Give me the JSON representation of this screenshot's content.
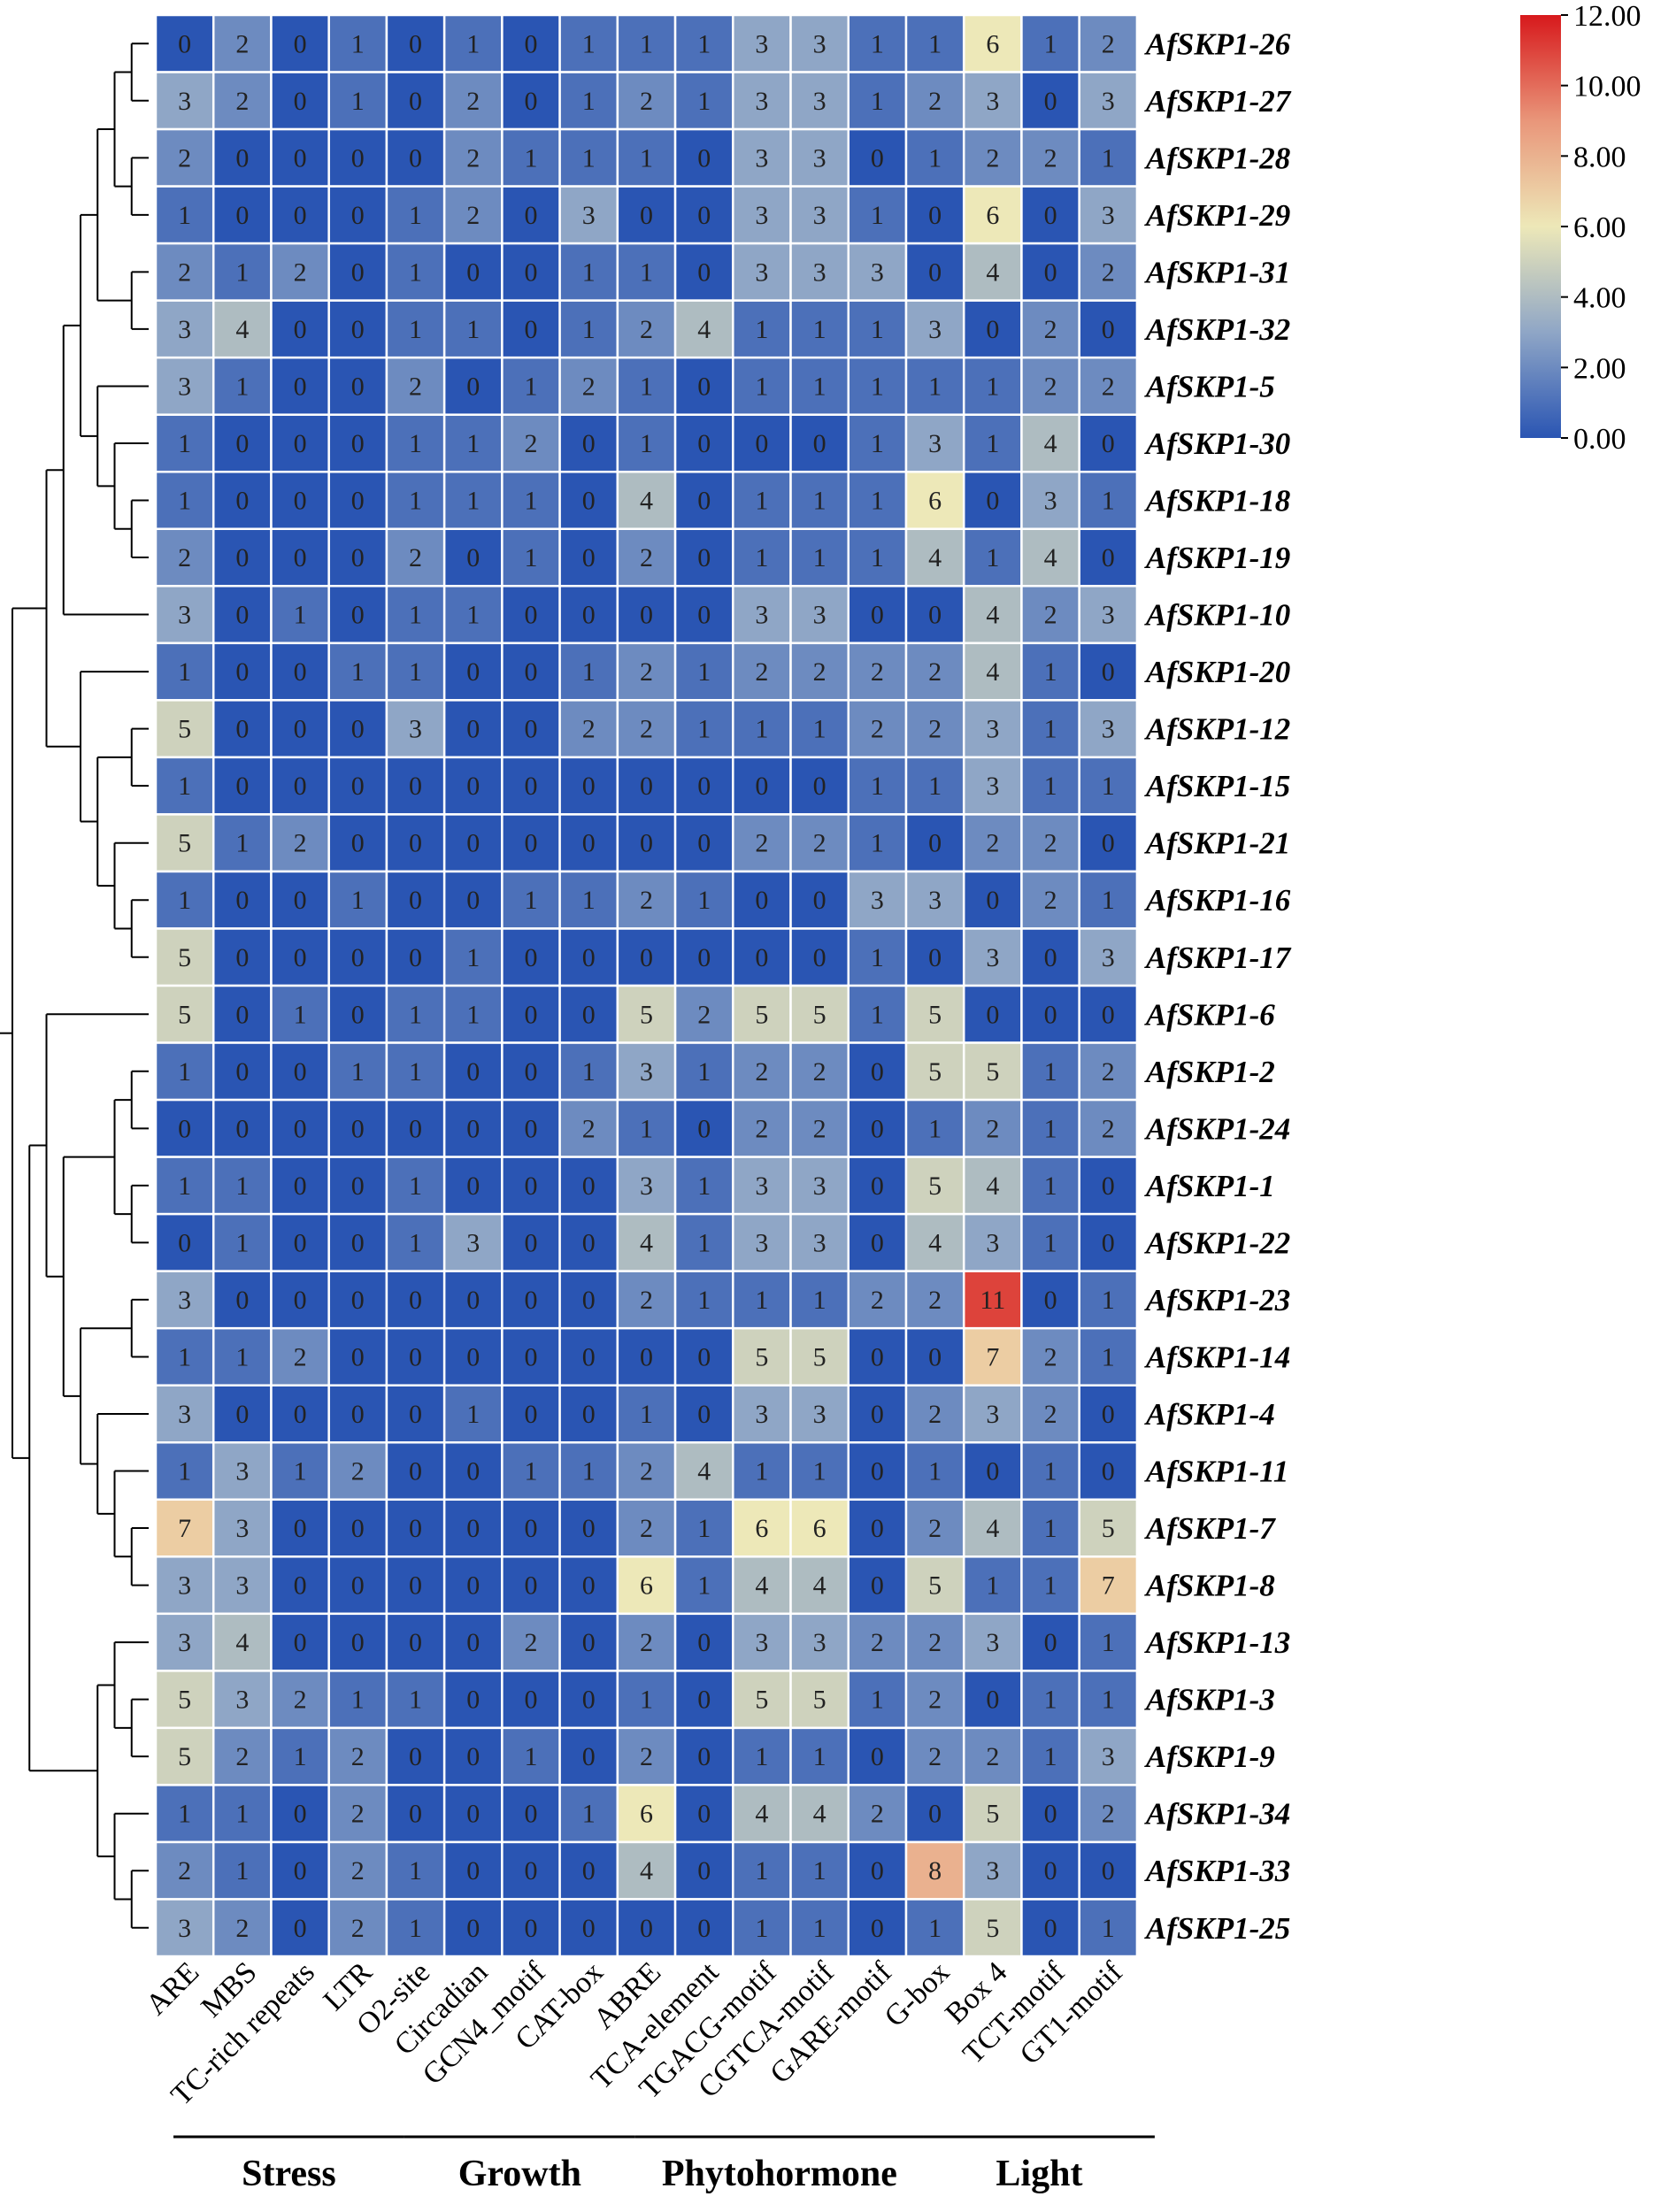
{
  "chart_data": {
    "type": "heatmap",
    "rows": [
      "AfSKP1-26",
      "AfSKP1-27",
      "AfSKP1-28",
      "AfSKP1-29",
      "AfSKP1-31",
      "AfSKP1-32",
      "AfSKP1-5",
      "AfSKP1-30",
      "AfSKP1-18",
      "AfSKP1-19",
      "AfSKP1-10",
      "AfSKP1-20",
      "AfSKP1-12",
      "AfSKP1-15",
      "AfSKP1-21",
      "AfSKP1-16",
      "AfSKP1-17",
      "AfSKP1-6",
      "AfSKP1-2",
      "AfSKP1-24",
      "AfSKP1-1",
      "AfSKP1-22",
      "AfSKP1-23",
      "AfSKP1-14",
      "AfSKP1-4",
      "AfSKP1-11",
      "AfSKP1-7",
      "AfSKP1-8",
      "AfSKP1-13",
      "AfSKP1-3",
      "AfSKP1-9",
      "AfSKP1-34",
      "AfSKP1-33",
      "AfSKP1-25"
    ],
    "columns": [
      "ARE",
      "MBS",
      "TC-rich repeats",
      "LTR",
      "O2-site",
      "Circadian",
      "GCN4_motif",
      "CAT-box",
      "ABRE",
      "TCA-element",
      "TGACG-motif",
      "CGTCA-motif",
      "GARE-motif",
      "G-box",
      "Box 4",
      "TCT-motif",
      "GT1-motif"
    ],
    "values": [
      [
        0,
        2,
        0,
        1,
        0,
        1,
        0,
        1,
        1,
        1,
        3,
        3,
        1,
        1,
        6,
        1,
        2
      ],
      [
        3,
        2,
        0,
        1,
        0,
        2,
        0,
        1,
        2,
        1,
        3,
        3,
        1,
        2,
        3,
        0,
        3
      ],
      [
        2,
        0,
        0,
        0,
        0,
        2,
        1,
        1,
        1,
        0,
        3,
        3,
        0,
        1,
        2,
        2,
        1
      ],
      [
        1,
        0,
        0,
        0,
        1,
        2,
        0,
        3,
        0,
        0,
        3,
        3,
        1,
        0,
        6,
        0,
        3
      ],
      [
        2,
        1,
        2,
        0,
        1,
        0,
        0,
        1,
        1,
        0,
        3,
        3,
        3,
        0,
        4,
        0,
        2
      ],
      [
        3,
        4,
        0,
        0,
        1,
        1,
        0,
        1,
        2,
        4,
        1,
        1,
        1,
        3,
        0,
        2,
        0
      ],
      [
        3,
        1,
        0,
        0,
        2,
        0,
        1,
        2,
        1,
        0,
        1,
        1,
        1,
        1,
        1,
        2,
        2
      ],
      [
        1,
        0,
        0,
        0,
        1,
        1,
        2,
        0,
        1,
        0,
        0,
        0,
        1,
        3,
        1,
        4,
        0
      ],
      [
        1,
        0,
        0,
        0,
        1,
        1,
        1,
        0,
        4,
        0,
        1,
        1,
        1,
        6,
        0,
        3,
        1
      ],
      [
        2,
        0,
        0,
        0,
        2,
        0,
        1,
        0,
        2,
        0,
        1,
        1,
        1,
        4,
        1,
        4,
        0
      ],
      [
        3,
        0,
        1,
        0,
        1,
        1,
        0,
        0,
        0,
        0,
        3,
        3,
        0,
        0,
        4,
        2,
        3
      ],
      [
        1,
        0,
        0,
        1,
        1,
        0,
        0,
        1,
        2,
        1,
        2,
        2,
        2,
        2,
        4,
        1,
        0
      ],
      [
        5,
        0,
        0,
        0,
        3,
        0,
        0,
        2,
        2,
        1,
        1,
        1,
        2,
        2,
        3,
        1,
        3
      ],
      [
        1,
        0,
        0,
        0,
        0,
        0,
        0,
        0,
        0,
        0,
        0,
        0,
        1,
        1,
        3,
        1,
        1
      ],
      [
        5,
        1,
        2,
        0,
        0,
        0,
        0,
        0,
        0,
        0,
        2,
        2,
        1,
        0,
        2,
        2,
        0
      ],
      [
        1,
        0,
        0,
        1,
        0,
        0,
        1,
        1,
        2,
        1,
        0,
        0,
        3,
        3,
        0,
        2,
        1
      ],
      [
        5,
        0,
        0,
        0,
        0,
        1,
        0,
        0,
        0,
        0,
        0,
        0,
        1,
        0,
        3,
        0,
        3
      ],
      [
        5,
        0,
        1,
        0,
        1,
        1,
        0,
        0,
        5,
        2,
        5,
        5,
        1,
        5,
        0,
        0,
        0
      ],
      [
        1,
        0,
        0,
        1,
        1,
        0,
        0,
        1,
        3,
        1,
        2,
        2,
        0,
        5,
        5,
        1,
        2
      ],
      [
        0,
        0,
        0,
        0,
        0,
        0,
        0,
        2,
        1,
        0,
        2,
        2,
        0,
        1,
        2,
        1,
        2
      ],
      [
        1,
        1,
        0,
        0,
        1,
        0,
        0,
        0,
        3,
        1,
        3,
        3,
        0,
        5,
        4,
        1,
        0
      ],
      [
        0,
        1,
        0,
        0,
        1,
        3,
        0,
        0,
        4,
        1,
        3,
        3,
        0,
        4,
        3,
        1,
        0
      ],
      [
        3,
        0,
        0,
        0,
        0,
        0,
        0,
        0,
        2,
        1,
        1,
        1,
        2,
        2,
        11,
        0,
        1
      ],
      [
        1,
        1,
        2,
        0,
        0,
        0,
        0,
        0,
        0,
        0,
        5,
        5,
        0,
        0,
        7,
        2,
        1
      ],
      [
        3,
        0,
        0,
        0,
        0,
        1,
        0,
        0,
        1,
        0,
        3,
        3,
        0,
        2,
        3,
        2,
        0
      ],
      [
        1,
        3,
        1,
        2,
        0,
        0,
        1,
        1,
        2,
        4,
        1,
        1,
        0,
        1,
        0,
        1,
        0
      ],
      [
        7,
        3,
        0,
        0,
        0,
        0,
        0,
        0,
        2,
        1,
        6,
        6,
        0,
        2,
        4,
        1,
        5
      ],
      [
        3,
        3,
        0,
        0,
        0,
        0,
        0,
        0,
        6,
        1,
        4,
        4,
        0,
        5,
        1,
        1,
        7
      ],
      [
        3,
        4,
        0,
        0,
        0,
        0,
        2,
        0,
        2,
        0,
        3,
        3,
        2,
        2,
        3,
        0,
        1
      ],
      [
        5,
        3,
        2,
        1,
        1,
        0,
        0,
        0,
        1,
        0,
        5,
        5,
        1,
        2,
        0,
        1,
        1
      ],
      [
        5,
        2,
        1,
        2,
        0,
        0,
        1,
        0,
        2,
        0,
        1,
        1,
        0,
        2,
        2,
        1,
        3
      ],
      [
        1,
        1,
        0,
        2,
        0,
        0,
        0,
        1,
        6,
        0,
        4,
        4,
        2,
        0,
        5,
        0,
        2
      ],
      [
        2,
        1,
        0,
        2,
        1,
        0,
        0,
        0,
        4,
        0,
        1,
        1,
        0,
        8,
        3,
        0,
        0
      ],
      [
        3,
        2,
        0,
        2,
        1,
        0,
        0,
        0,
        0,
        0,
        1,
        1,
        0,
        1,
        5,
        0,
        1
      ]
    ],
    "groups": [
      {
        "name": "Stress",
        "columns": [
          "ARE",
          "MBS",
          "TC-rich repeats",
          "LTR"
        ]
      },
      {
        "name": "Growth",
        "columns": [
          "O2-site",
          "Circadian",
          "GCN4_motif",
          "CAT-box"
        ]
      },
      {
        "name": "Phytohormone",
        "columns": [
          "ABRE",
          "TCA-element",
          "TGACG-motif",
          "CGTCA-motif",
          "GARE-motif"
        ]
      },
      {
        "name": "Light",
        "columns": [
          "G-box",
          "Box 4",
          "TCT-motif",
          "GT1-motif"
        ]
      }
    ],
    "color_scale": {
      "min": 0,
      "max": 12,
      "ticks": [
        "12.00",
        "10.00",
        "8.00",
        "6.00",
        "4.00",
        "2.00",
        "0.00"
      ],
      "colors": [
        "#2a55b3",
        "#8fa6c6",
        "#ede8b8",
        "#e9967a",
        "#d7191c"
      ]
    },
    "row_dendrogram": true,
    "legend_position": "top-right"
  }
}
